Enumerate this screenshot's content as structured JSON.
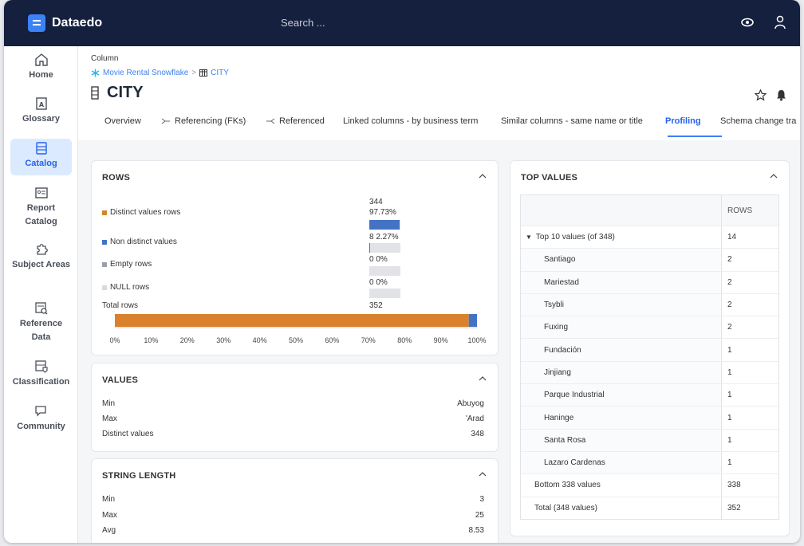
{
  "app": {
    "name": "Dataedo",
    "search_placeholder": "Search ..."
  },
  "sidebar": {
    "items": [
      {
        "label": "Home",
        "icon": "home-icon"
      },
      {
        "label": "Glossary",
        "icon": "glossary-icon"
      },
      {
        "label": "Catalog",
        "icon": "catalog-icon",
        "active": true
      },
      {
        "label": "Report Catalog",
        "icon": "report-catalog-icon"
      },
      {
        "label": "Subject Areas",
        "icon": "puzzle-icon"
      },
      {
        "label": "Reference Data",
        "icon": "reference-data-icon"
      },
      {
        "label": "Classification",
        "icon": "classification-icon"
      },
      {
        "label": "Community",
        "icon": "chat-icon"
      }
    ]
  },
  "header": {
    "object_type": "Column",
    "breadcrumb": {
      "database": "Movie Rental Snowflake",
      "separator": ">",
      "table": "CITY"
    },
    "title": "CITY"
  },
  "tabs": [
    {
      "label": "Overview"
    },
    {
      "label": "Referencing (FKs)"
    },
    {
      "label": "Referenced"
    },
    {
      "label": "Linked columns - by business term"
    },
    {
      "label": "Similar columns - same name or title"
    },
    {
      "label": "Profiling",
      "active": true
    },
    {
      "label": "Schema change tra"
    }
  ],
  "rows_card": {
    "title": "ROWS",
    "items": [
      {
        "label": "Distinct values rows",
        "count": "344",
        "percent": "97.73%",
        "fraction": 0.9773,
        "color": "#d9822b"
      },
      {
        "label": "Non distinct values",
        "count": "8",
        "percent": "2.27%",
        "fraction": 0.0227,
        "color": "#4472c4"
      },
      {
        "label": "Empty rows",
        "count": "0",
        "percent": "0%",
        "fraction": 0,
        "color": "#9aa0a8"
      },
      {
        "label": "NULL rows",
        "count": "0",
        "percent": "0%",
        "fraction": 0,
        "color": "#d8dadf"
      }
    ],
    "total_label": "Total rows",
    "total_value": "352",
    "axis_ticks": [
      "0%",
      "10%",
      "20%",
      "30%",
      "40%",
      "50%",
      "60%",
      "70%",
      "80%",
      "90%",
      "100%"
    ]
  },
  "values_card": {
    "title": "VALUES",
    "rows": [
      {
        "label": "Min",
        "value": "Abuyog"
      },
      {
        "label": "Max",
        "value": "'Arad"
      },
      {
        "label": "Distinct values",
        "value": "348"
      }
    ]
  },
  "string_length_card": {
    "title": "STRING LENGTH",
    "rows": [
      {
        "label": "Min",
        "value": "3"
      },
      {
        "label": "Max",
        "value": "25"
      },
      {
        "label": "Avg",
        "value": "8.53"
      }
    ]
  },
  "top_values_card": {
    "title": "TOP VALUES",
    "column_header": "ROWS",
    "group_label": "Top 10 values (of 348)",
    "group_value": "14",
    "values": [
      {
        "value": "Santiago",
        "rows": "2"
      },
      {
        "value": "Mariestad",
        "rows": "2"
      },
      {
        "value": "Tsybli",
        "rows": "2"
      },
      {
        "value": "Fuxing",
        "rows": "2"
      },
      {
        "value": "Fundación",
        "rows": "1"
      },
      {
        "value": "Jinjiang",
        "rows": "1"
      },
      {
        "value": "Parque Industrial",
        "rows": "1"
      },
      {
        "value": "Haninge",
        "rows": "1"
      },
      {
        "value": "Santa Rosa",
        "rows": "1"
      },
      {
        "value": "Lazaro Cardenas",
        "rows": "1"
      }
    ],
    "bottom_label": "Bottom 338 values",
    "bottom_value": "338",
    "total_label": "Total (348 values)",
    "total_value": "352"
  },
  "chart_data": {
    "type": "bar",
    "orientation": "horizontal-stacked",
    "categories": [
      "Total rows"
    ],
    "series": [
      {
        "name": "Distinct values rows",
        "values": [
          97.73
        ]
      },
      {
        "name": "Non distinct values",
        "values": [
          2.27
        ]
      }
    ],
    "xlim": [
      0,
      100
    ],
    "x_ticks": [
      "0%",
      "10%",
      "20%",
      "30%",
      "40%",
      "50%",
      "60%",
      "70%",
      "80%",
      "90%",
      "100%"
    ],
    "colors": [
      "#d9822b",
      "#4472c4"
    ]
  }
}
